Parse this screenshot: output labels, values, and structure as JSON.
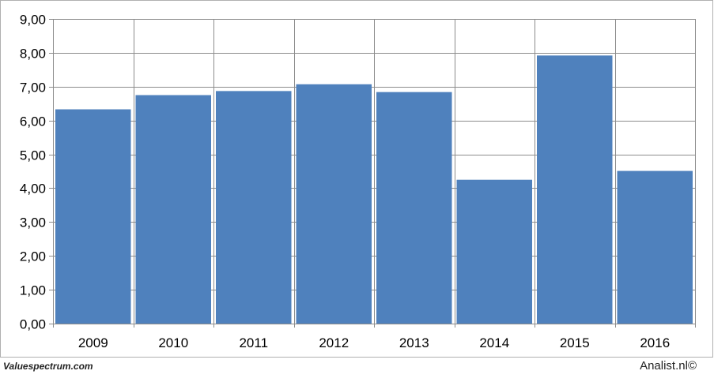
{
  "chart_data": {
    "type": "bar",
    "categories": [
      "2009",
      "2010",
      "2011",
      "2012",
      "2013",
      "2014",
      "2015",
      "2016"
    ],
    "values": [
      6.33,
      6.75,
      6.87,
      7.07,
      6.84,
      4.25,
      7.92,
      4.51
    ],
    "ylim": [
      0,
      9
    ],
    "yticks": [
      "0,00",
      "1,00",
      "2,00",
      "3,00",
      "4,00",
      "5,00",
      "6,00",
      "7,00",
      "8,00",
      "9,00"
    ],
    "grid": true,
    "bar_color": "#4f81bd",
    "grid_color": "#8c8c8c"
  },
  "footer": {
    "source_left": "Valuespectrum.com",
    "source_right": "Analist.nl©"
  }
}
